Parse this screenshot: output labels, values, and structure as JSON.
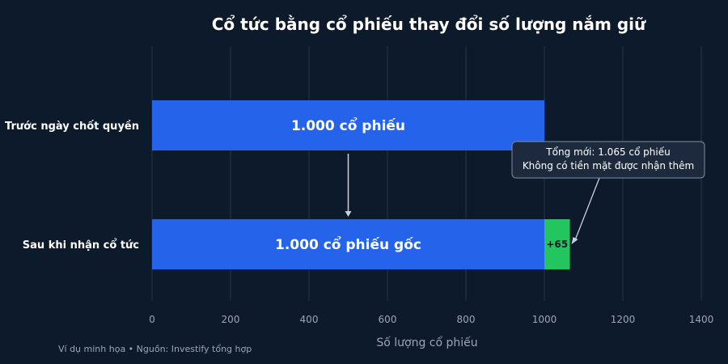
{
  "chart_data": {
    "type": "bar",
    "orientation": "horizontal",
    "stacked": true,
    "title": "Cổ tức bằng cổ phiếu thay đổi số lượng nắm giữ",
    "xlabel": "Số lượng cổ phiếu",
    "ylabel": "",
    "xlim": [
      0,
      1400
    ],
    "xticks": [
      0,
      200,
      400,
      600,
      800,
      1000,
      1200,
      1400
    ],
    "grid": true,
    "categories": [
      "Trước ngày chốt quyền",
      "Sau khi nhận cổ tức"
    ],
    "series": [
      {
        "values": [
          1000,
          1000
        ],
        "color": "#2563eb",
        "labels": [
          "1.000 cổ phiếu",
          "1.000 cổ phiếu gốc"
        ]
      },
      {
        "values": [
          0,
          65
        ],
        "color": "#22c55e",
        "labels": [
          "",
          "+65"
        ]
      }
    ],
    "annotation": {
      "lines": [
        "Tổng mới: 1.065 cổ phiếu",
        "Không có tiền mặt được nhận thêm"
      ],
      "target_category": 1,
      "target_value": 1065
    },
    "arrow": {
      "from_category": 0,
      "to_category": 1,
      "at_value": 500
    }
  },
  "footer": "Ví dụ minh họa  •  Nguồn: Investify tổng hợp",
  "colors": {
    "background": "#0d1a2b",
    "grid": "#26344a",
    "text": "#ffffff",
    "muted": "#9aa6b5"
  }
}
